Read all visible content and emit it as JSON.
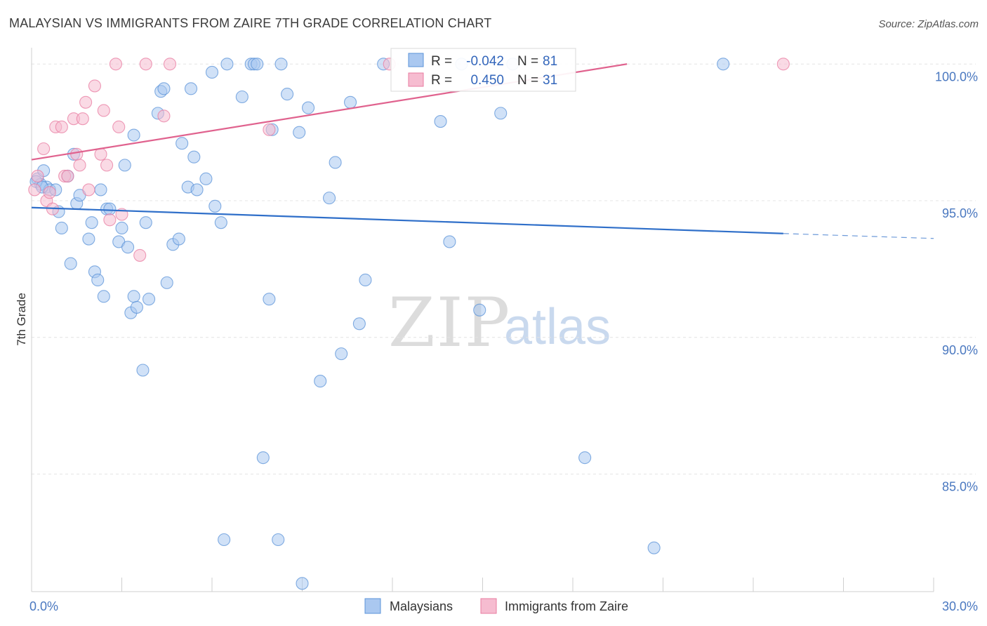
{
  "title": "MALAYSIAN VS IMMIGRANTS FROM ZAIRE 7TH GRADE CORRELATION CHART",
  "source": "Source: ZipAtlas.com",
  "watermark": {
    "zip": "ZIP",
    "atlas": "atlas"
  },
  "colors": {
    "blue": "#5b93d8",
    "blue_fill": "#aac8f0",
    "blue_line": "#2f6fc9",
    "pink": "#e87ba0",
    "pink_fill": "#f6bcd0",
    "pink_line": "#e0628e",
    "grid": "#e4e4e4",
    "tick_text": "#4a78c0"
  },
  "stats_box": {
    "rows": [
      {
        "label_r": "R =",
        "r": "-0.042",
        "label_n": "N =",
        "n": "81"
      },
      {
        "label_r": "R =",
        "r": "0.450",
        "label_n": "N =",
        "n": "31"
      }
    ]
  },
  "legend": {
    "series1": "Malaysians",
    "series2": "Immigrants from Zaire"
  },
  "chart_data": {
    "type": "scatter",
    "title": "MALAYSIAN VS IMMIGRANTS FROM ZAIRE 7TH GRADE CORRELATION CHART",
    "xlabel": "",
    "ylabel": "7th Grade",
    "xlim": [
      0,
      30
    ],
    "ylim": [
      80.7,
      100.7
    ],
    "x_tick_labels": [
      {
        "value": 0,
        "label": "0.0%"
      },
      {
        "value": 30,
        "label": "30.0%"
      }
    ],
    "y_tick_labels": [
      {
        "value": 100,
        "label": "100.0%"
      },
      {
        "value": 95,
        "label": "95.0%"
      },
      {
        "value": 90,
        "label": "90.0%"
      },
      {
        "value": 85,
        "label": "85.0%"
      }
    ],
    "series": [
      {
        "name": "Malaysians",
        "r": -0.042,
        "n": 81,
        "trend": {
          "x0": 0,
          "y0": 94.75,
          "x1": 25.0,
          "y1": 93.8,
          "dash_to_x": 30.0,
          "dash_to_y": 93.62
        },
        "points": [
          [
            0.2,
            95.8
          ],
          [
            0.4,
            96.1
          ],
          [
            0.5,
            95.5
          ],
          [
            0.3,
            95.6
          ],
          [
            0.6,
            95.4
          ],
          [
            0.8,
            95.4
          ],
          [
            0.9,
            94.6
          ],
          [
            1.0,
            94.0
          ],
          [
            1.2,
            95.9
          ],
          [
            1.4,
            96.7
          ],
          [
            1.5,
            94.9
          ],
          [
            1.6,
            95.2
          ],
          [
            1.3,
            92.7
          ],
          [
            1.9,
            93.6
          ],
          [
            2.0,
            94.2
          ],
          [
            2.1,
            92.4
          ],
          [
            2.2,
            92.1
          ],
          [
            2.3,
            95.4
          ],
          [
            2.4,
            91.5
          ],
          [
            2.5,
            94.7
          ],
          [
            2.6,
            94.7
          ],
          [
            2.9,
            93.5
          ],
          [
            3.0,
            94.0
          ],
          [
            3.1,
            96.3
          ],
          [
            3.2,
            93.3
          ],
          [
            3.3,
            90.9
          ],
          [
            3.4,
            91.5
          ],
          [
            3.5,
            91.1
          ],
          [
            3.4,
            97.4
          ],
          [
            3.7,
            88.8
          ],
          [
            3.8,
            94.2
          ],
          [
            3.9,
            91.4
          ],
          [
            4.2,
            98.2
          ],
          [
            4.3,
            99.0
          ],
          [
            4.4,
            99.1
          ],
          [
            4.5,
            92.0
          ],
          [
            4.7,
            93.4
          ],
          [
            4.9,
            93.6
          ],
          [
            5.0,
            97.1
          ],
          [
            5.2,
            95.5
          ],
          [
            5.3,
            99.1
          ],
          [
            5.4,
            96.6
          ],
          [
            5.5,
            95.4
          ],
          [
            5.8,
            95.8
          ],
          [
            6.0,
            99.7
          ],
          [
            6.1,
            94.8
          ],
          [
            6.3,
            94.2
          ],
          [
            6.4,
            82.6
          ],
          [
            6.5,
            100.0
          ],
          [
            7.0,
            98.8
          ],
          [
            7.3,
            100.0
          ],
          [
            7.4,
            100.0
          ],
          [
            7.5,
            100.0
          ],
          [
            7.7,
            85.6
          ],
          [
            7.9,
            91.4
          ],
          [
            8.0,
            97.6
          ],
          [
            8.2,
            82.6
          ],
          [
            8.3,
            100.0
          ],
          [
            8.5,
            98.9
          ],
          [
            8.9,
            97.5
          ],
          [
            9.0,
            81.0
          ],
          [
            9.2,
            98.4
          ],
          [
            9.6,
            88.4
          ],
          [
            9.9,
            95.1
          ],
          [
            10.1,
            96.4
          ],
          [
            10.3,
            89.4
          ],
          [
            10.6,
            98.6
          ],
          [
            10.9,
            90.5
          ],
          [
            11.1,
            92.1
          ],
          [
            11.7,
            100.0
          ],
          [
            13.6,
            97.9
          ],
          [
            13.9,
            93.5
          ],
          [
            14.3,
            100.0
          ],
          [
            14.9,
            91.0
          ],
          [
            15.6,
            98.2
          ],
          [
            16.0,
            100.0
          ],
          [
            18.4,
            85.6
          ],
          [
            20.7,
            82.3
          ],
          [
            23.0,
            100.0
          ],
          [
            0.15,
            95.7
          ],
          [
            0.35,
            95.5
          ]
        ]
      },
      {
        "name": "Immigrants from Zaire",
        "r": 0.45,
        "n": 31,
        "trend": {
          "x0": 0,
          "y0": 96.5,
          "x1": 19.8,
          "y1": 100.0
        },
        "points": [
          [
            0.1,
            95.4
          ],
          [
            0.2,
            95.9
          ],
          [
            0.4,
            96.9
          ],
          [
            0.5,
            95.0
          ],
          [
            0.6,
            95.3
          ],
          [
            0.7,
            94.7
          ],
          [
            0.8,
            97.7
          ],
          [
            1.0,
            97.7
          ],
          [
            1.1,
            95.9
          ],
          [
            1.2,
            95.9
          ],
          [
            1.4,
            98.0
          ],
          [
            1.5,
            96.7
          ],
          [
            1.6,
            96.3
          ],
          [
            1.7,
            98.0
          ],
          [
            1.8,
            98.6
          ],
          [
            1.9,
            95.4
          ],
          [
            2.1,
            99.2
          ],
          [
            2.3,
            96.7
          ],
          [
            2.4,
            98.3
          ],
          [
            2.5,
            96.3
          ],
          [
            2.6,
            94.3
          ],
          [
            2.8,
            100.0
          ],
          [
            2.9,
            97.7
          ],
          [
            3.0,
            94.5
          ],
          [
            3.6,
            93.0
          ],
          [
            3.8,
            100.0
          ],
          [
            4.4,
            98.1
          ],
          [
            4.6,
            100.0
          ],
          [
            7.9,
            97.6
          ],
          [
            11.9,
            100.0
          ],
          [
            25.0,
            100.0
          ]
        ]
      }
    ]
  }
}
